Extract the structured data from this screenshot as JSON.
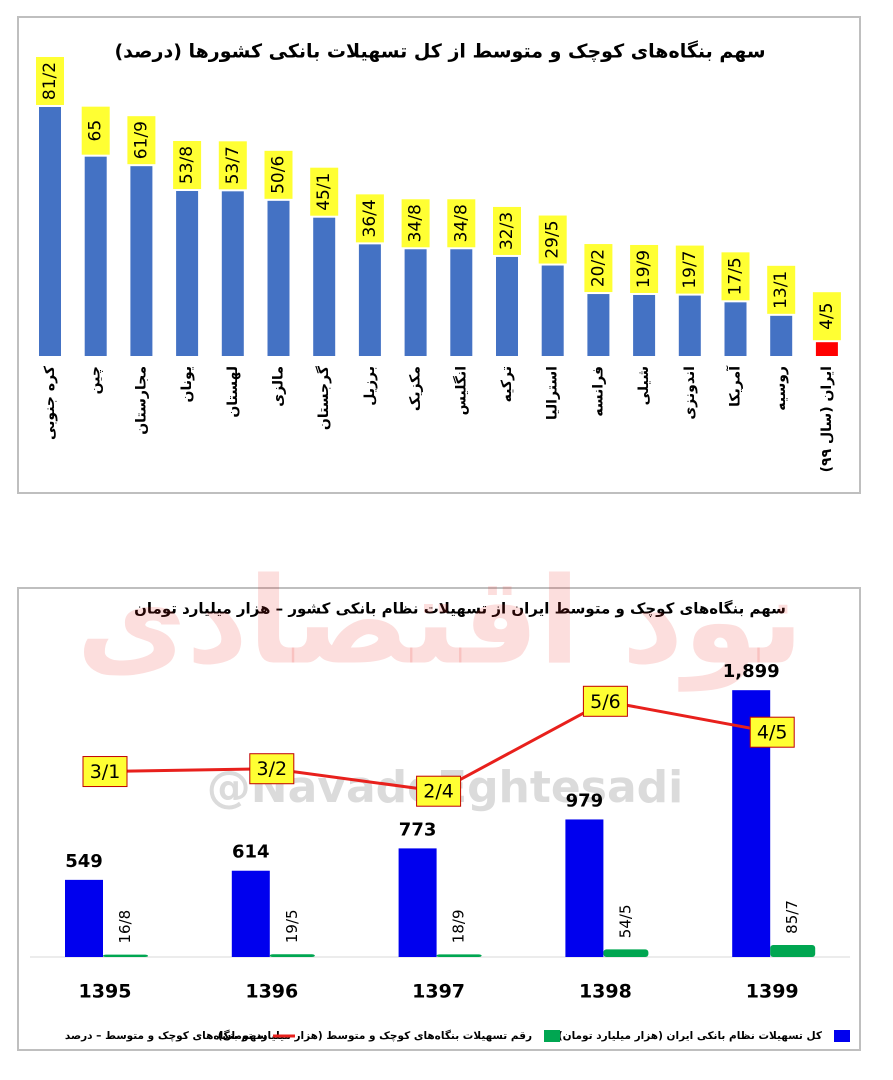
{
  "chart_data": [
    {
      "type": "bar",
      "title": "سهم بنگاه‌های کوچک و متوسط از کل تسهیلات بانکی کشورها (درصد)",
      "categories": [
        "کره جنوبی",
        "چین",
        "مجارستان",
        "یونان",
        "لهستان",
        "مالزی",
        "گرجستان",
        "برزیل",
        "مکزیک",
        "انگلیس",
        "ترکیه",
        "استرالیا",
        "فرانسه",
        "شیلی",
        "اندونزی",
        "آمریکا",
        "روسیه",
        "ایران (سال ۹۹)"
      ],
      "values": [
        81.2,
        65,
        61.9,
        53.8,
        53.7,
        50.6,
        45.1,
        36.4,
        34.8,
        34.8,
        32.3,
        29.5,
        20.2,
        19.9,
        19.7,
        17.5,
        13.1,
        4.5
      ],
      "value_labels": [
        "81/2",
        "65",
        "61/9",
        "53/8",
        "53/7",
        "50/6",
        "45/1",
        "36/4",
        "34/8",
        "34/8",
        "32/3",
        "29/5",
        "20/2",
        "19/9",
        "19/7",
        "17/5",
        "13/1",
        "4/5"
      ],
      "colors": [
        "#4472c4",
        "#4472c4",
        "#4472c4",
        "#4472c4",
        "#4472c4",
        "#4472c4",
        "#4472c4",
        "#4472c4",
        "#4472c4",
        "#4472c4",
        "#4472c4",
        "#4472c4",
        "#4472c4",
        "#4472c4",
        "#4472c4",
        "#4472c4",
        "#4472c4",
        "#ff0000"
      ],
      "label_background": "#ffff33",
      "ylim": [
        0,
        90
      ]
    },
    {
      "type": "combo",
      "title": "سهم بنگاه‌های کوچک و متوسط ایران از تسهیلات نظام بانکی کشور – هزار میلیارد تومان",
      "categories": [
        "1395",
        "1396",
        "1397",
        "1398",
        "1399"
      ],
      "series": [
        {
          "name": "کل تسهیلات نظام بانکی ایران (هزار میلیارد تومان)",
          "type": "bar",
          "color": "#0000ee",
          "values": [
            549,
            614,
            773,
            979,
            1899
          ],
          "value_labels": [
            "549",
            "614",
            "773",
            "979",
            "1,899"
          ]
        },
        {
          "name": "رقم تسهیلات بنگاه‌های کوچک و متوسط (هزار میلیارد تومان)",
          "type": "bar",
          "color": "#00a651",
          "values": [
            16.8,
            19.5,
            18.9,
            54.5,
            85.7
          ],
          "value_labels": [
            "16/8",
            "19/5",
            "18/9",
            "54/5",
            "85/7"
          ]
        },
        {
          "name": "سهم بنگاه‌های کوچک و متوسط – درصد",
          "type": "line",
          "axis": "y2",
          "color": "#e8201c",
          "values": [
            3.1,
            3.2,
            2.4,
            5.6,
            4.5
          ],
          "value_labels": [
            "3/1",
            "3/2",
            "2/4",
            "5/6",
            "4/5"
          ]
        }
      ],
      "label_background": "#ffff33",
      "ylim": [
        0,
        2000
      ],
      "y2lim": [
        -3.5,
        6.5
      ],
      "legend": "bottom"
    }
  ],
  "watermark": "نود اقتصادی",
  "handle": "@NavadeEghtesadi"
}
